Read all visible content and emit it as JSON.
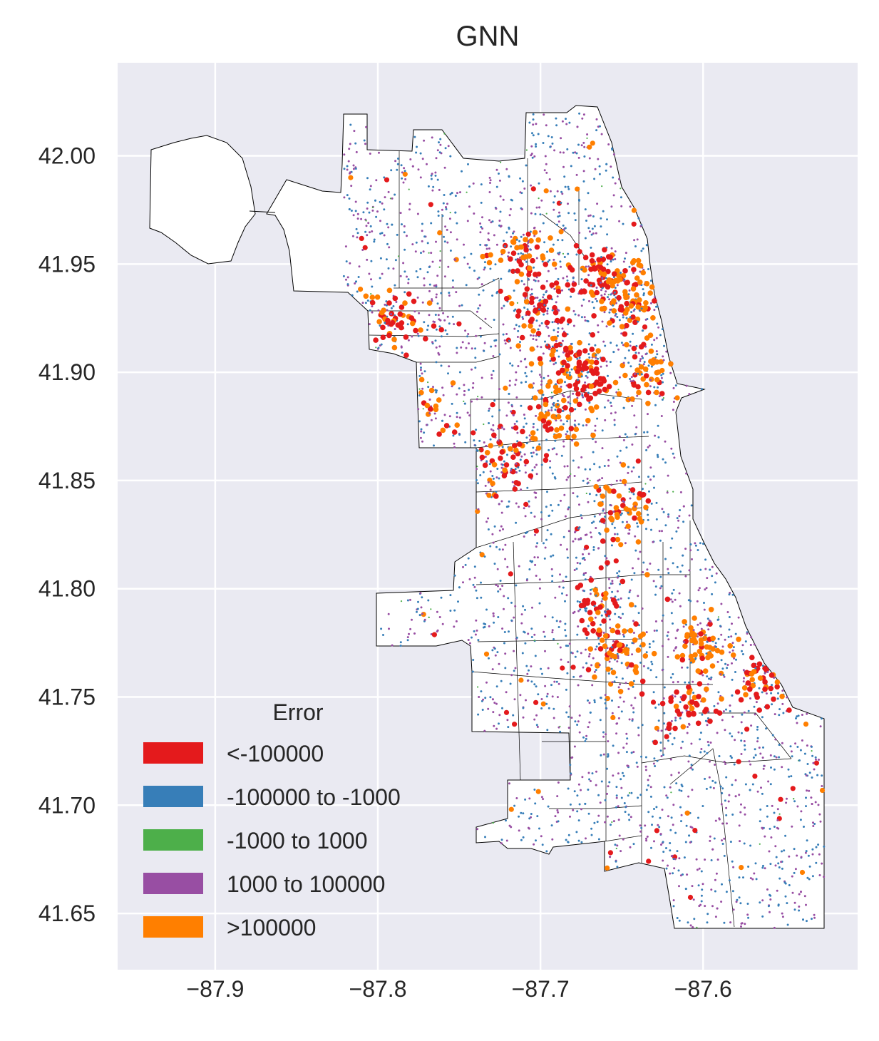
{
  "chart_data": {
    "type": "scatter",
    "title": "GNN",
    "xlabel": "",
    "ylabel": "",
    "xlim": [
      -87.96,
      -87.505
    ],
    "ylim": [
      41.624,
      42.043
    ],
    "xticks": [
      -87.9,
      -87.8,
      -87.7,
      -87.6
    ],
    "xtick_labels": [
      "−87.9",
      "−87.8",
      "−87.7",
      "−87.6"
    ],
    "yticks": [
      41.65,
      41.7,
      41.75,
      41.8,
      41.85,
      41.9,
      41.95,
      42.0
    ],
    "ytick_labels": [
      "41.65",
      "41.70",
      "41.75",
      "41.80",
      "41.85",
      "41.90",
      "41.95",
      "42.00"
    ],
    "grid": true,
    "background": "#eaeaf2",
    "legend": {
      "title": "Error",
      "placement": "lower-left",
      "entries": [
        {
          "label": "<-100000",
          "color": "#e41a1c"
        },
        {
          "label": "-100000 to -1000",
          "color": "#377eb8"
        },
        {
          "label": "-1000 to 1000",
          "color": "#4daf4a"
        },
        {
          "label": "1000 to 100000",
          "color": "#984ea3"
        },
        {
          "label": ">100000",
          "color": "#ff7f00"
        }
      ]
    },
    "hotspots": [
      {
        "lon": -87.655,
        "lat": 41.94,
        "category": 4
      },
      {
        "lon": -87.665,
        "lat": 41.945,
        "category": 0
      },
      {
        "lon": -87.645,
        "lat": 41.93,
        "category": 4
      },
      {
        "lon": -87.7,
        "lat": 41.928,
        "category": 0
      },
      {
        "lon": -87.71,
        "lat": 41.955,
        "category": 4
      },
      {
        "lon": -87.685,
        "lat": 41.905,
        "category": 4
      },
      {
        "lon": -87.67,
        "lat": 41.898,
        "category": 0
      },
      {
        "lon": -87.635,
        "lat": 41.9,
        "category": 4
      },
      {
        "lon": -87.72,
        "lat": 41.86,
        "category": 0
      },
      {
        "lon": -87.69,
        "lat": 41.88,
        "category": 4
      },
      {
        "lon": -87.65,
        "lat": 41.835,
        "category": 4
      },
      {
        "lon": -87.665,
        "lat": 41.79,
        "category": 0
      },
      {
        "lon": -87.65,
        "lat": 41.77,
        "category": 4
      },
      {
        "lon": -87.61,
        "lat": 41.745,
        "category": 0
      },
      {
        "lon": -87.6,
        "lat": 41.775,
        "category": 4
      },
      {
        "lon": -87.56,
        "lat": 41.758,
        "category": 0
      },
      {
        "lon": -87.78,
        "lat": 41.88,
        "category": 4
      },
      {
        "lon": -87.79,
        "lat": 41.925,
        "category": 0
      }
    ]
  }
}
